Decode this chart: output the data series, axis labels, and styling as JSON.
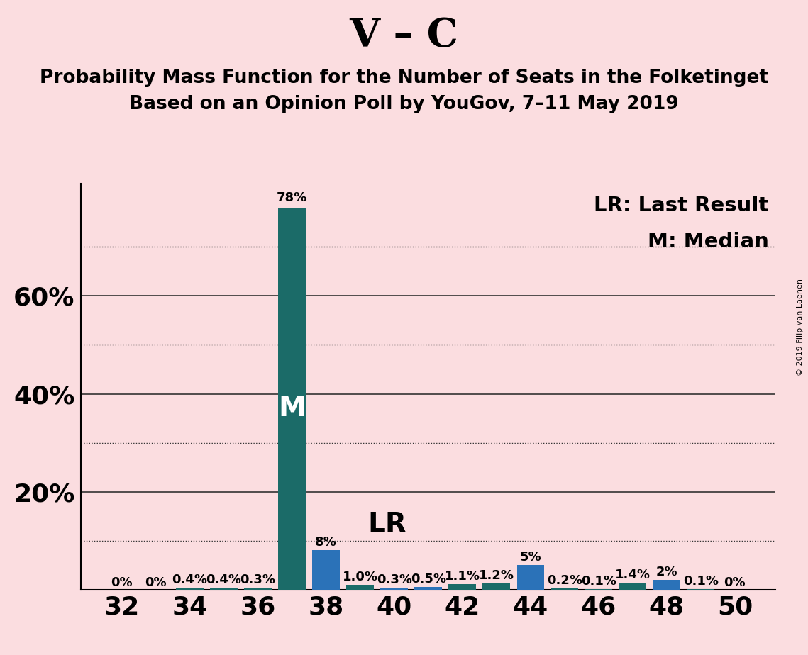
{
  "title_main": "V – C",
  "title_sub1": "Probability Mass Function for the Number of Seats in the Folketinget",
  "title_sub2": "Based on an Opinion Poll by YouGov, 7–11 May 2019",
  "copyright": "© 2019 Filip van Laenen",
  "seats": [
    32,
    33,
    34,
    35,
    36,
    37,
    38,
    39,
    40,
    41,
    42,
    43,
    44,
    45,
    46,
    47,
    48,
    49,
    50
  ],
  "values": [
    0.0,
    0.0,
    0.4,
    0.4,
    0.3,
    78.0,
    8.0,
    1.0,
    0.3,
    0.5,
    1.1,
    1.2,
    5.0,
    0.2,
    0.1,
    1.4,
    2.0,
    0.1,
    0.0
  ],
  "labels": [
    "0%",
    "0%",
    "0.4%",
    "0.4%",
    "0.3%",
    "78%",
    "8%",
    "1.0%",
    "0.3%",
    "0.5%",
    "1.1%",
    "1.2%",
    "5%",
    "0.2%",
    "0.1%",
    "1.4%",
    "2%",
    "0.1%",
    "0%"
  ],
  "median_seat": 37,
  "lr_seat": 38,
  "teal_color": "#1B6B68",
  "blue_color": "#2B72B8",
  "background_color": "#FBDDE0",
  "ylim": [
    0,
    83
  ],
  "solid_grid_vals": [
    20,
    40,
    60
  ],
  "dotted_grid_vals": [
    10,
    30,
    50,
    70
  ],
  "ytick_vals": [
    20,
    40,
    60
  ],
  "ytick_labels": [
    "20%",
    "40%",
    "60%"
  ],
  "grid_color": "#333333",
  "legend_lr": "LR: Last Result",
  "legend_m": "M: Median",
  "axis_label_fontsize": 26,
  "title_main_fontsize": 40,
  "title_sub_fontsize": 19,
  "bar_label_fontsize": 13,
  "legend_fontsize": 21,
  "median_label_fontsize": 28,
  "lr_label_fontsize": 28,
  "teal_seats": [
    34,
    35,
    36,
    37,
    39,
    42,
    43,
    45,
    46,
    47,
    49
  ]
}
